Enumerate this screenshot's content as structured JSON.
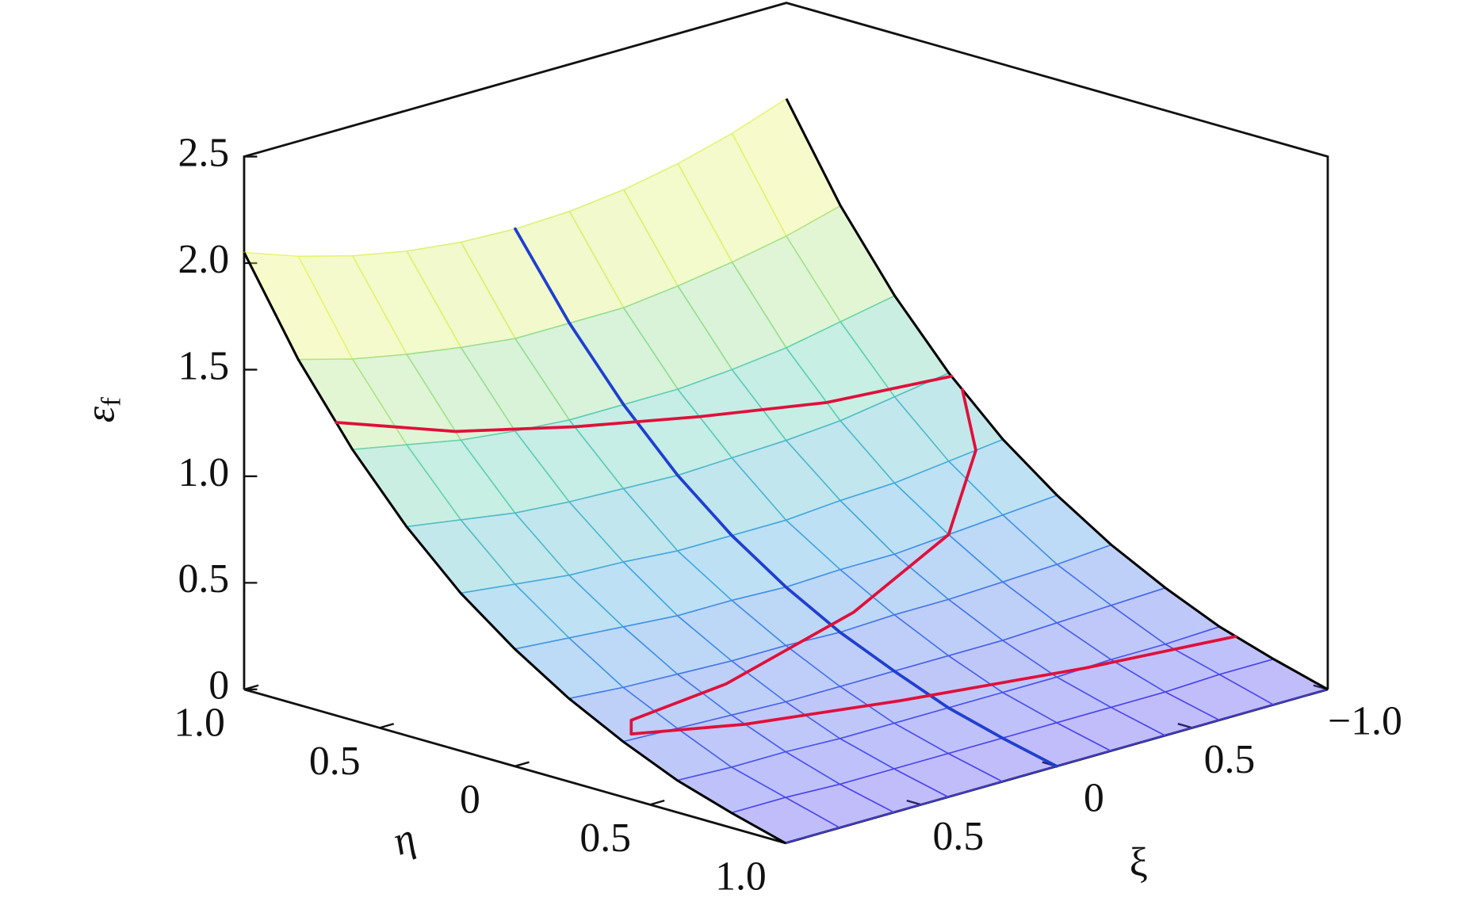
{
  "chart_data": {
    "type": "surface",
    "zlabel": "ε",
    "zlabel_sub": "f",
    "xlabel": "η",
    "ylabel": "ξ",
    "x": [
      -1,
      -0.8,
      -0.6,
      -0.4,
      -0.2,
      0,
      0.2,
      0.4,
      0.6,
      0.8,
      1
    ],
    "y": [
      -1,
      -0.8,
      -0.6,
      -0.4,
      -0.2,
      0,
      0.2,
      0.4,
      0.6,
      0.8,
      1
    ],
    "z": [
      [
        2.05,
        1.96,
        1.89,
        1.84,
        1.81,
        1.8,
        1.81,
        1.84,
        1.89,
        1.96,
        2.05
      ],
      [
        1.62,
        1.55,
        1.5,
        1.46,
        1.43,
        1.43,
        1.43,
        1.46,
        1.5,
        1.55,
        1.62
      ],
      [
        1.27,
        1.22,
        1.17,
        1.14,
        1.12,
        1.12,
        1.12,
        1.14,
        1.17,
        1.22,
        1.27
      ],
      [
        0.98,
        0.94,
        0.9,
        0.88,
        0.87,
        0.86,
        0.87,
        0.88,
        0.9,
        0.94,
        0.98
      ],
      [
        0.74,
        0.71,
        0.68,
        0.67,
        0.65,
        0.65,
        0.65,
        0.67,
        0.68,
        0.71,
        0.74
      ],
      [
        0.55,
        0.53,
        0.51,
        0.49,
        0.49,
        0.48,
        0.49,
        0.49,
        0.51,
        0.53,
        0.55
      ],
      [
        0.39,
        0.37,
        0.36,
        0.35,
        0.35,
        0.34,
        0.35,
        0.35,
        0.36,
        0.37,
        0.39
      ],
      [
        0.26,
        0.25,
        0.24,
        0.23,
        0.23,
        0.23,
        0.23,
        0.23,
        0.24,
        0.25,
        0.26
      ],
      [
        0.15,
        0.14,
        0.14,
        0.13,
        0.13,
        0.13,
        0.13,
        0.13,
        0.14,
        0.14,
        0.15
      ],
      [
        0.07,
        0.07,
        0.06,
        0.06,
        0.06,
        0.06,
        0.06,
        0.06,
        0.06,
        0.07,
        0.07
      ],
      [
        0,
        0,
        0,
        0,
        0,
        0,
        0,
        0,
        0,
        0,
        0
      ]
    ],
    "xlim": [
      -1,
      1
    ],
    "ylim": [
      -1,
      1
    ],
    "zlim": [
      0,
      2.5
    ],
    "xticks": [
      {
        "value": -1,
        "label": "1.0"
      },
      {
        "value": -0.5,
        "label": "0.5"
      },
      0,
      0.5,
      {
        "value": 1,
        "label": "1.0"
      }
    ],
    "yticks": [
      {
        "value": -1,
        "label": "−1.0"
      },
      {
        "value": -0.5,
        "label": "0.5"
      },
      0,
      0.5
    ],
    "zticks": [
      0,
      0.5,
      {
        "value": 1,
        "label": "1.0"
      },
      1.5,
      {
        "value": 2,
        "label": "2.0"
      },
      2.5
    ],
    "colormap": [
      "#4b3cf2",
      "#3fa2e6",
      "#5fd0b0",
      "#d8ee6c",
      "#ffff70"
    ],
    "edge_color": "#000000",
    "curves": [
      {
        "color": "#1f3fd0",
        "x": [
          -1,
          -0.8,
          -0.6,
          -0.4,
          -0.2,
          0,
          0.2,
          0.4,
          0.6,
          0.8,
          1
        ],
        "y": [
          0,
          0,
          0,
          0,
          0,
          0,
          0,
          0,
          0,
          0,
          0
        ]
      },
      {
        "color": "#e0103a",
        "x": [
          -0.66,
          -0.62,
          -0.58,
          -0.52,
          -0.45,
          -0.39
        ],
        "y": [
          1,
          0.6,
          0.2,
          -0.2,
          -0.6,
          -1
        ]
      },
      {
        "color": "#e0103a",
        "x": [
          -0.35,
          -0.2,
          0,
          0.15,
          0.28,
          0.33,
          0.38,
          0.45,
          0.52,
          0.6,
          0.66
        ],
        "y": [
          -1,
          -0.9,
          -0.6,
          -0.1,
          0.5,
          0.9,
          0.95,
          0.6,
          0.1,
          -0.5,
          -1
        ]
      }
    ]
  }
}
